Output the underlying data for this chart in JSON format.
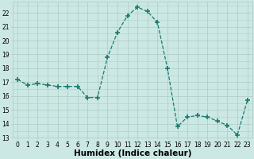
{
  "x": [
    0,
    1,
    2,
    3,
    4,
    5,
    6,
    7,
    8,
    9,
    10,
    11,
    12,
    13,
    14,
    15,
    16,
    17,
    18,
    19,
    20,
    21,
    22,
    23
  ],
  "y": [
    17.2,
    16.8,
    16.9,
    16.8,
    16.7,
    16.7,
    16.7,
    15.9,
    15.9,
    18.8,
    20.6,
    21.8,
    22.4,
    22.1,
    21.3,
    18.0,
    13.8,
    14.5,
    14.6,
    14.5,
    14.2,
    13.9,
    13.2,
    15.7
  ],
  "line_color": "#1a7a6e",
  "marker": "+",
  "marker_size": 4,
  "marker_lw": 1.2,
  "bg_color": "#cce8e4",
  "grid_color": "#b0cfc8",
  "xlabel": "Humidex (Indice chaleur)",
  "ylabel_ticks": [
    13,
    14,
    15,
    16,
    17,
    18,
    19,
    20,
    21,
    22
  ],
  "xlim": [
    -0.5,
    23.5
  ],
  "ylim": [
    13,
    22.8
  ],
  "xticks": [
    0,
    1,
    2,
    3,
    4,
    5,
    6,
    7,
    8,
    9,
    10,
    11,
    12,
    13,
    14,
    15,
    16,
    17,
    18,
    19,
    20,
    21,
    22,
    23
  ],
  "tick_fontsize": 5.5,
  "label_fontsize": 7.5
}
